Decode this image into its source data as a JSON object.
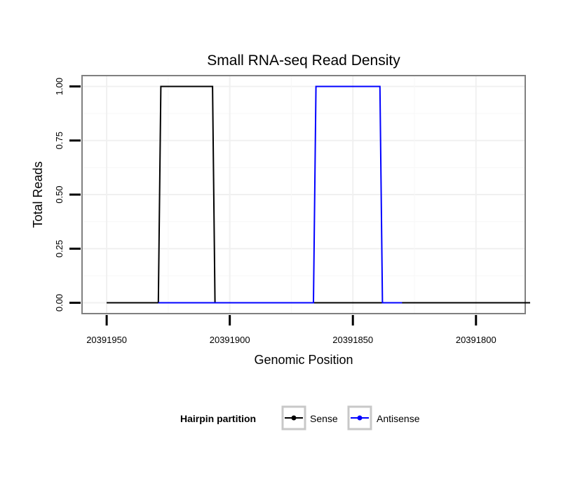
{
  "chart_data": {
    "type": "line",
    "title": "Small RNA-seq Read Density",
    "xlabel": "Genomic Position",
    "ylabel": "Total Reads",
    "x_reversed": true,
    "xlim": [
      20391960,
      20391780
    ],
    "ylim": [
      -0.05,
      1.05
    ],
    "x_ticks": [
      20391950,
      20391900,
      20391850,
      20391800
    ],
    "x_tick_labels": [
      "20391950",
      "20391900",
      "20391850",
      "20391800"
    ],
    "y_ticks": [
      0,
      0.25,
      0.5,
      0.75,
      1
    ],
    "y_tick_labels": [
      "0.00",
      "0.25",
      "0.50",
      "0.75",
      "1.00"
    ],
    "grid": true,
    "series": [
      {
        "name": "Sense",
        "color": "#000000",
        "x": [
          20391950,
          20391929,
          20391928,
          20391907,
          20391906,
          20391778
        ],
        "y": [
          0,
          0,
          1,
          1,
          0,
          0
        ]
      },
      {
        "name": "Antisense",
        "color": "#0000ff",
        "x": [
          20391929,
          20391866,
          20391865,
          20391839,
          20391838,
          20391830
        ],
        "y": [
          0,
          0,
          1,
          1,
          0,
          0
        ]
      }
    ],
    "legend": {
      "title": "Hairpin partition",
      "position": "bottom",
      "entries": [
        "Sense",
        "Antisense"
      ]
    }
  }
}
